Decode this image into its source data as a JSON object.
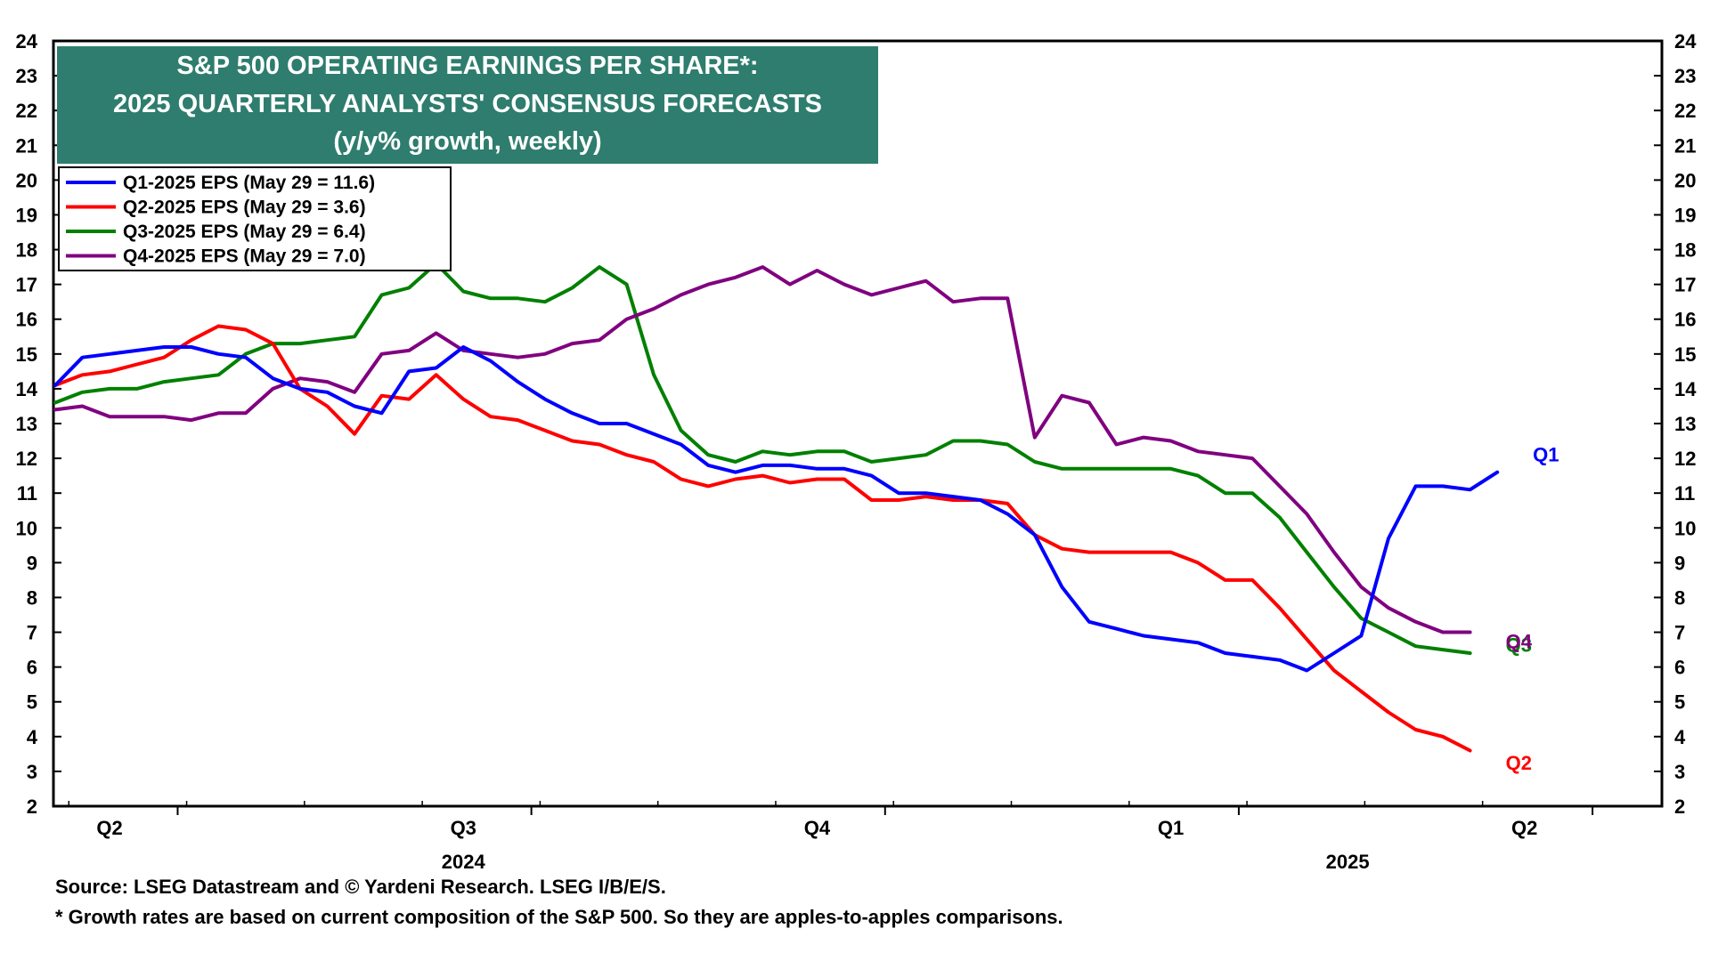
{
  "footer": {
    "source": "Source: LSEG Datastream and © Yardeni Research. LSEG I/B/E/S.",
    "note": "* Growth rates are based on current composition of the S&P 500. So they are apples-to-apples comparisons."
  },
  "chart_data": {
    "type": "line",
    "title_lines": [
      "S&P 500 OPERATING EARNINGS PER SHARE*:",
      "2025 QUARTERLY ANALYSTS' CONSENSUS FORECASTS",
      "(y/y% growth, weekly)"
    ],
    "ylim": [
      2,
      24
    ],
    "yticks": [
      2,
      3,
      4,
      5,
      6,
      7,
      8,
      9,
      10,
      11,
      12,
      13,
      14,
      15,
      16,
      17,
      18,
      19,
      20,
      21,
      22,
      23,
      24
    ],
    "x_quarter_labels": [
      {
        "label": "Q2",
        "week": 2
      },
      {
        "label": "Q3",
        "week": 15
      },
      {
        "label": "Q4",
        "week": 28
      },
      {
        "label": "Q1",
        "week": 41
      },
      {
        "label": "Q2",
        "week": 54
      }
    ],
    "x_year_labels": [
      {
        "label": "2024",
        "week": 15
      },
      {
        "label": "2025",
        "week": 47.5
      }
    ],
    "x_week_range": [
      0,
      56.5
    ],
    "legend_position": "top-left",
    "colors": {
      "title_bg": "#2e7d6e",
      "q1": "#0000ff",
      "q2": "#ff0000",
      "q3": "#008000",
      "q4": "#800080"
    },
    "series": [
      {
        "name": "Q1-2025 EPS (May 29 = 11.6)",
        "end_label": "Q1",
        "color": "#0000ff",
        "values": [
          14.1,
          14.9,
          15.0,
          15.1,
          15.2,
          15.2,
          15.0,
          14.9,
          14.3,
          14.0,
          13.9,
          13.5,
          13.3,
          14.5,
          14.6,
          15.2,
          14.8,
          14.2,
          13.7,
          13.3,
          13.0,
          13.0,
          12.7,
          12.4,
          11.8,
          11.6,
          11.8,
          11.8,
          11.7,
          11.7,
          11.5,
          11.0,
          11.0,
          10.9,
          10.8,
          10.4,
          9.8,
          8.3,
          7.3,
          7.1,
          6.9,
          6.8,
          6.7,
          6.4,
          6.3,
          6.2,
          5.9,
          6.4,
          6.9,
          9.7,
          11.2,
          11.2,
          11.1,
          11.6
        ]
      },
      {
        "name": "Q2-2025 EPS (May 29 = 3.6)",
        "end_label": "Q2",
        "color": "#ff0000",
        "values": [
          14.1,
          14.4,
          14.5,
          14.7,
          14.9,
          15.4,
          15.8,
          15.7,
          15.3,
          14.0,
          13.5,
          12.7,
          13.8,
          13.7,
          14.4,
          13.7,
          13.2,
          13.1,
          12.8,
          12.5,
          12.4,
          12.1,
          11.9,
          11.4,
          11.2,
          11.4,
          11.5,
          11.3,
          11.4,
          11.4,
          10.8,
          10.8,
          10.9,
          10.8,
          10.8,
          10.7,
          9.8,
          9.4,
          9.3,
          9.3,
          9.3,
          9.3,
          9.0,
          8.5,
          8.5,
          7.7,
          6.8,
          5.9,
          5.3,
          4.7,
          4.2,
          4.0,
          3.6
        ]
      },
      {
        "name": "Q3-2025 EPS (May 29 = 6.4)",
        "end_label": "Q3",
        "color": "#008000",
        "values": [
          13.6,
          13.9,
          14.0,
          14.0,
          14.2,
          14.3,
          14.4,
          15.0,
          15.3,
          15.3,
          15.4,
          15.5,
          16.7,
          16.9,
          17.6,
          16.8,
          16.6,
          16.6,
          16.5,
          16.9,
          17.5,
          17.0,
          14.4,
          12.8,
          12.1,
          11.9,
          12.2,
          12.1,
          12.2,
          12.2,
          11.9,
          12.0,
          12.1,
          12.5,
          12.5,
          12.4,
          11.9,
          11.7,
          11.7,
          11.7,
          11.7,
          11.7,
          11.5,
          11.0,
          11.0,
          10.3,
          9.3,
          8.3,
          7.4,
          7.0,
          6.6,
          6.5,
          6.4
        ]
      },
      {
        "name": "Q4-2025 EPS (May 29 = 7.0)",
        "end_label": "Q4",
        "color": "#800080",
        "values": [
          13.4,
          13.5,
          13.2,
          13.2,
          13.2,
          13.1,
          13.3,
          13.3,
          14.0,
          14.3,
          14.2,
          13.9,
          15.0,
          15.1,
          15.6,
          15.1,
          15.0,
          14.9,
          15.0,
          15.3,
          15.4,
          16.0,
          16.3,
          16.7,
          17.0,
          17.2,
          17.5,
          17.0,
          17.4,
          17.0,
          16.7,
          16.9,
          17.1,
          16.5,
          16.6,
          16.6,
          12.6,
          13.8,
          13.6,
          12.4,
          12.6,
          12.5,
          12.2,
          12.1,
          12.0,
          11.2,
          10.4,
          9.3,
          8.3,
          7.7,
          7.3,
          7.0,
          7.0
        ]
      }
    ]
  }
}
